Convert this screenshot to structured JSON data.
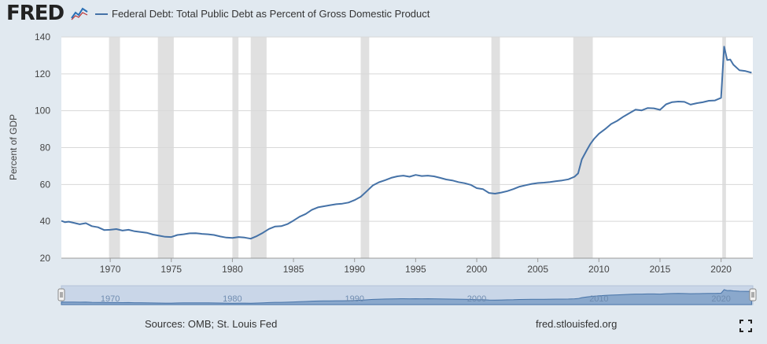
{
  "header": {
    "logo_text": "FRED",
    "logo_icon": "line-chart-icon"
  },
  "chart_data": {
    "type": "line",
    "title": "Federal Debt: Total Public Debt as Percent of Gross Domestic Product",
    "ylabel": "Percent of GDP",
    "xlim": [
      1966,
      2022.6
    ],
    "ylim": [
      20,
      140
    ],
    "yticks": [
      20,
      40,
      60,
      80,
      100,
      120,
      140
    ],
    "xticks": [
      1970,
      1975,
      1980,
      1985,
      1990,
      1995,
      2000,
      2005,
      2010,
      2015,
      2020
    ],
    "navigator_ticks": [
      1970,
      1980,
      1990,
      2000,
      2010,
      2020
    ],
    "navigator_tick_labels": [
      "1970",
      "1980",
      "1990",
      "2000",
      "2010",
      "2020"
    ],
    "grid": "horizontal",
    "legend_position": "top-left",
    "line_color": "#4572a7",
    "recession_color": "#e0e0e0",
    "recessions": [
      [
        1969.9,
        1970.8
      ],
      [
        1973.9,
        1975.2
      ],
      [
        1980.0,
        1980.5
      ],
      [
        1981.5,
        1982.8
      ],
      [
        1990.5,
        1991.2
      ],
      [
        2001.2,
        2001.9
      ],
      [
        2007.9,
        2009.5
      ],
      [
        2020.1,
        2020.4
      ]
    ],
    "series": [
      {
        "x": [
          1966.0,
          1966.3,
          1966.6,
          1967.0,
          1967.5,
          1968.0,
          1968.5,
          1969.0,
          1969.5,
          1970.0,
          1970.5,
          1971.0,
          1971.5,
          1972.0,
          1972.5,
          1973.0,
          1973.5,
          1974.0,
          1974.5,
          1975.0,
          1975.5,
          1976.0,
          1976.5,
          1977.0,
          1977.5,
          1978.0,
          1978.5,
          1979.0,
          1979.5,
          1980.0,
          1980.5,
          1981.0,
          1981.5,
          1982.0,
          1982.5,
          1983.0,
          1983.5,
          1984.0,
          1984.5,
          1985.0,
          1985.5,
          1986.0,
          1986.5,
          1987.0,
          1987.5,
          1988.0,
          1988.5,
          1989.0,
          1989.5,
          1990.0,
          1990.5,
          1991.0,
          1991.5,
          1992.0,
          1992.5,
          1993.0,
          1993.5,
          1994.0,
          1994.5,
          1995.0,
          1995.5,
          1996.0,
          1996.5,
          1997.0,
          1997.5,
          1998.0,
          1998.5,
          1999.0,
          1999.5,
          2000.0,
          2000.5,
          2001.0,
          2001.5,
          2002.0,
          2002.5,
          2003.0,
          2003.5,
          2004.0,
          2004.5,
          2005.0,
          2005.5,
          2006.0,
          2006.5,
          2007.0,
          2007.5,
          2008.0,
          2008.3,
          2008.6,
          2009.0,
          2009.3,
          2009.6,
          2010.0,
          2010.5,
          2011.0,
          2011.5,
          2012.0,
          2012.5,
          2013.0,
          2013.5,
          2014.0,
          2014.5,
          2015.0,
          2015.5,
          2016.0,
          2016.5,
          2017.0,
          2017.5,
          2018.0,
          2018.5,
          2019.0,
          2019.5,
          2020.0,
          2020.25,
          2020.5,
          2020.75,
          2021.0,
          2021.5,
          2022.0,
          2022.5
        ],
        "y": [
          40.3,
          39.5,
          39.8,
          39.2,
          38.4,
          39.0,
          37.4,
          36.8,
          35.3,
          35.4,
          35.8,
          35.0,
          35.4,
          34.6,
          34.2,
          33.8,
          32.8,
          32.2,
          31.6,
          31.5,
          32.6,
          33.0,
          33.5,
          33.6,
          33.2,
          33.0,
          32.6,
          31.8,
          31.2,
          31.0,
          31.5,
          31.2,
          30.6,
          32.0,
          33.8,
          35.9,
          37.2,
          37.4,
          38.5,
          40.4,
          42.5,
          44.0,
          46.2,
          47.6,
          48.2,
          48.8,
          49.3,
          49.6,
          50.2,
          51.5,
          53.3,
          56.4,
          59.5,
          61.2,
          62.3,
          63.6,
          64.4,
          64.8,
          64.2,
          65.2,
          64.6,
          64.8,
          64.4,
          63.6,
          62.7,
          62.2,
          61.3,
          60.7,
          59.8,
          58.0,
          57.5,
          55.4,
          55.0,
          55.6,
          56.4,
          57.5,
          58.8,
          59.6,
          60.3,
          60.8,
          61.0,
          61.3,
          61.8,
          62.2,
          62.8,
          64.2,
          66.0,
          73.6,
          78.5,
          82.0,
          84.7,
          87.5,
          90.0,
          92.8,
          94.5,
          96.8,
          98.7,
          100.6,
          100.2,
          101.5,
          101.3,
          100.5,
          103.5,
          104.7,
          105.0,
          104.8,
          103.3,
          104.1,
          104.6,
          105.4,
          105.6,
          107.0,
          134.8,
          127.5,
          127.8,
          125.0,
          122.0,
          121.5,
          120.6
        ]
      }
    ]
  },
  "footer": {
    "sources": "Sources: OMB; St. Louis Fed",
    "site": "fred.stlouisfed.org",
    "fullscreen_icon": "fullscreen-icon"
  }
}
